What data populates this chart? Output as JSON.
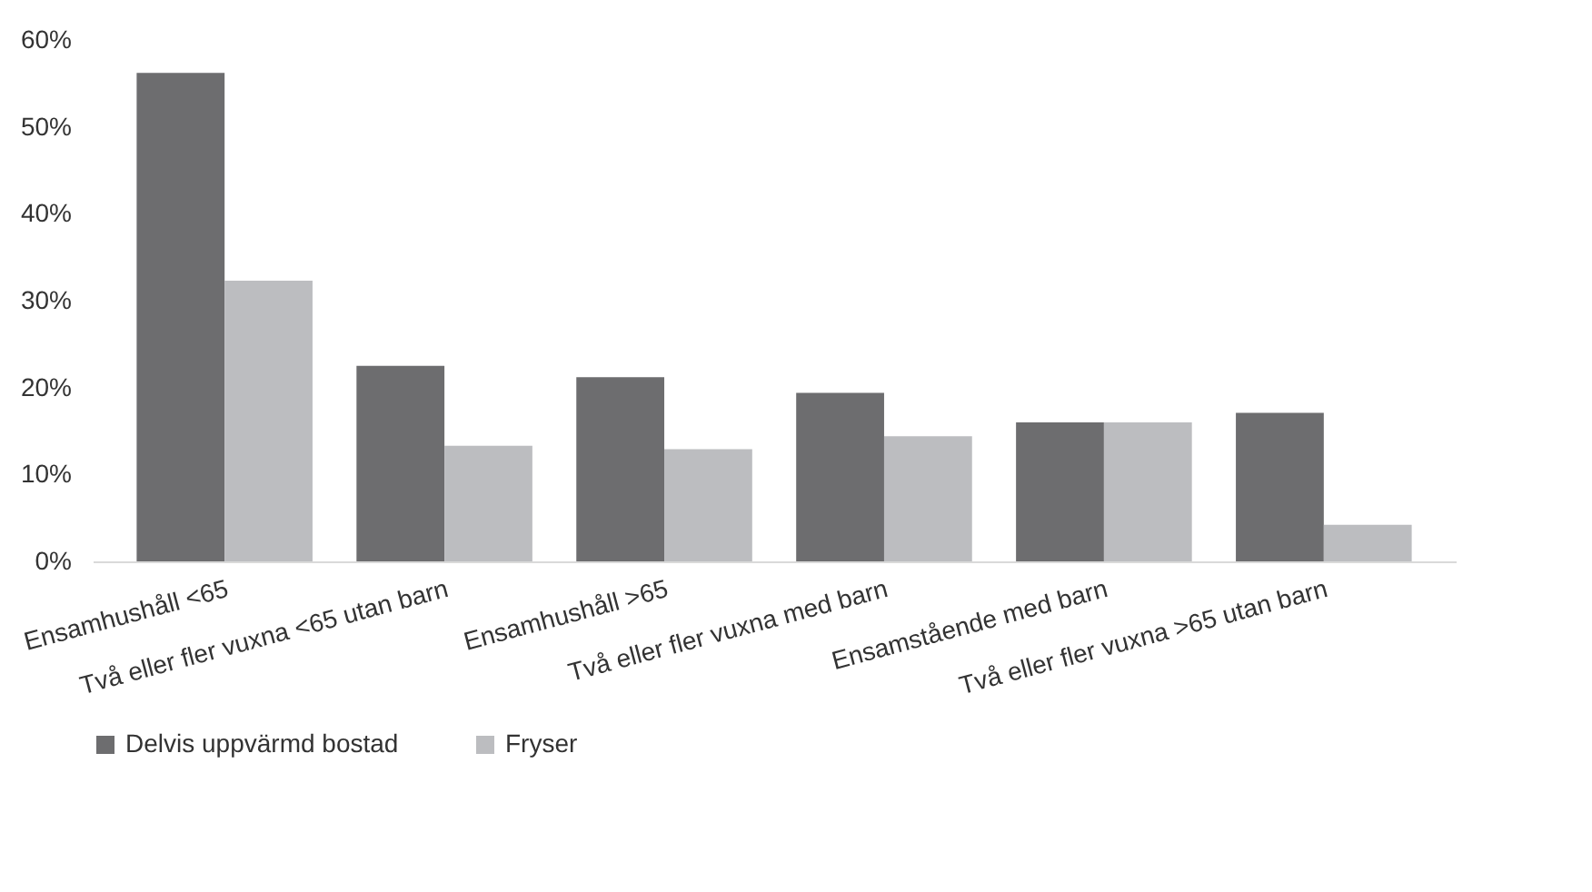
{
  "chart_data": {
    "type": "bar",
    "categories": [
      "Ensamhushåll <65",
      "Två eller fler vuxna <65 utan barn",
      "Ensamhushåll >65",
      "Två eller fler vuxna med barn",
      "Ensamstående med barn",
      "Två eller fler vuxna >65 utan barn"
    ],
    "series": [
      {
        "name": "Delvis uppvärmd bostad",
        "color": "#6d6d6f",
        "values": [
          56.2,
          22.5,
          21.2,
          19.4,
          16.0,
          17.1
        ]
      },
      {
        "name": "Fryser",
        "color": "#bcbdc0",
        "values": [
          32.3,
          13.3,
          12.9,
          14.4,
          16.0,
          4.2
        ]
      }
    ],
    "ylim": [
      0,
      60
    ],
    "yticks": [
      {
        "value": 0,
        "label": "0%"
      },
      {
        "value": 10,
        "label": "10%"
      },
      {
        "value": 20,
        "label": "20%"
      },
      {
        "value": 30,
        "label": "30%"
      },
      {
        "value": 40,
        "label": "40%"
      },
      {
        "value": 50,
        "label": "50%"
      },
      {
        "value": 60,
        "label": "60%"
      }
    ],
    "grid": false,
    "legend": "bottom"
  }
}
